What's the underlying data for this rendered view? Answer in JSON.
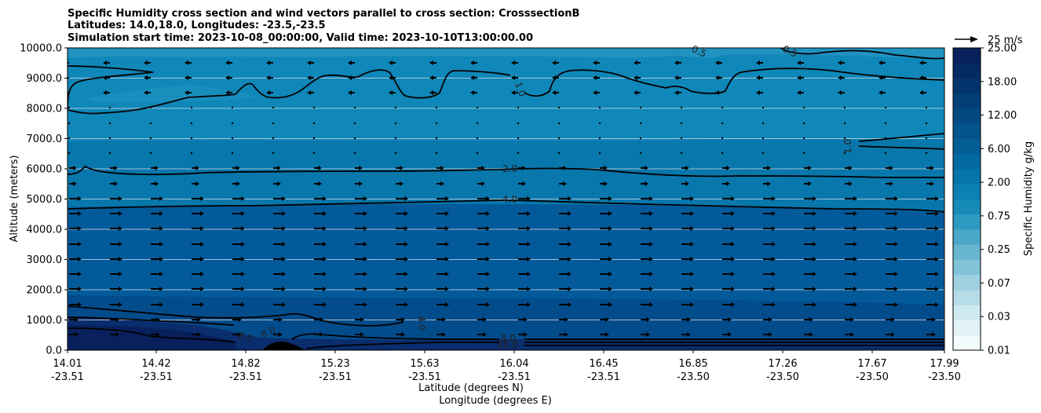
{
  "chart_data": {
    "type": "contour",
    "title_lines": [
      "Specific Humidity cross section and wind vectors parallel to cross section: CrosssectionB",
      "Latitudes: 14.0,18.0, Longitudes: -23.5,-23.5",
      "Simulation start time: 2023-10-08_00:00:00, Valid time: 2023-10-10T13:00:00.00"
    ],
    "ylabel": "Altitude (meters)",
    "xlabel_lat": "Latitude (degrees N)",
    "xlabel_lon": "Longitude (degrees E)",
    "ylim": [
      0,
      10000
    ],
    "y_ticks": [
      "0.0",
      "1000.0",
      "2000.0",
      "3000.0",
      "4000.0",
      "5000.0",
      "6000.0",
      "7000.0",
      "8000.0",
      "9000.0",
      "10000.0"
    ],
    "x_ticks": [
      {
        "lat": "14.01",
        "lon": "-23.51"
      },
      {
        "lat": "14.42",
        "lon": "-23.51"
      },
      {
        "lat": "14.82",
        "lon": "-23.51"
      },
      {
        "lat": "15.23",
        "lon": "-23.51"
      },
      {
        "lat": "15.63",
        "lon": "-23.51"
      },
      {
        "lat": "16.04",
        "lon": "-23.51"
      },
      {
        "lat": "16.45",
        "lon": "-23.51"
      },
      {
        "lat": "16.85",
        "lon": "-23.50"
      },
      {
        "lat": "17.26",
        "lon": "-23.50"
      },
      {
        "lat": "17.67",
        "lon": "-23.50"
      },
      {
        "lat": "17.99",
        "lon": "-23.50"
      }
    ],
    "colorbar": {
      "label": "Specific Humidity g/kg",
      "tick_labels": [
        "0.01",
        "0.03",
        "0.07",
        "0.25",
        "0.75",
        "2.00",
        "6.00",
        "12.00",
        "18.00",
        "25.00"
      ]
    },
    "quiver_key": "25 m/s",
    "contour_labels": [
      "1.0",
      "1.0",
      "2.0",
      "4.0",
      "4.0",
      "8.0",
      "8.0",
      "8.0",
      "16.0",
      "0.5",
      "0.5"
    ],
    "colors": {
      "upper": "#0f87b8",
      "upper_light": "#2f9ac6",
      "mid_upper": "#0877ac",
      "mid": "#035a9a",
      "lower": "#034c8c",
      "surface": "#0a2d6e",
      "surface_core": "#08215c",
      "contour": "#000000",
      "gridline": "#c8d7e3"
    }
  }
}
